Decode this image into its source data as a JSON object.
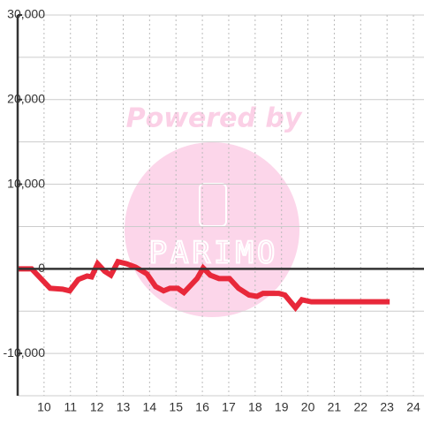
{
  "chart_data": {
    "type": "line",
    "watermark": "Powered by",
    "logo": "PARIMO",
    "xlim": [
      9,
      24.4
    ],
    "xticks": [
      10,
      11,
      12,
      13,
      14,
      15,
      16,
      17,
      18,
      19,
      20,
      21,
      22,
      23,
      24
    ],
    "ylim": [
      -15000,
      30000
    ],
    "yticks": [
      {
        "value": -10000,
        "label": "-10,000"
      },
      0,
      {
        "value": 10000,
        "label": "10,000"
      },
      {
        "value": 20000,
        "label": "20,000"
      },
      {
        "value": 30000,
        "label": "30,000"
      }
    ],
    "ygrid": [
      -15000,
      -10000,
      -5000,
      0,
      5000,
      10000,
      15000,
      20000,
      25000,
      30000
    ],
    "grid": true,
    "x": [
      9,
      9.53,
      10.23,
      10.7,
      10.97,
      11.3,
      11.63,
      11.8,
      12.03,
      12.3,
      12.53,
      12.8,
      13.13,
      13.47,
      13.9,
      14.23,
      14.53,
      14.77,
      15.07,
      15.3,
      15.8,
      16.03,
      16.3,
      16.63,
      17.03,
      17.37,
      17.77,
      18.07,
      18.3,
      18.9,
      19.13,
      19.53,
      19.77,
      20.13,
      23.1
    ],
    "series": [
      {
        "color": "#e8283a",
        "values": [
          0,
          0,
          -2300,
          -2400,
          -2600,
          -1250,
          -850,
          -950,
          600,
          -300,
          -750,
          850,
          600,
          200,
          -600,
          -2100,
          -2600,
          -2300,
          -2300,
          -2800,
          -1150,
          100,
          -750,
          -1150,
          -1150,
          -2300,
          -3100,
          -3250,
          -2900,
          -2900,
          -3100,
          -4600,
          -3650,
          -3900,
          -3900
        ]
      }
    ]
  }
}
